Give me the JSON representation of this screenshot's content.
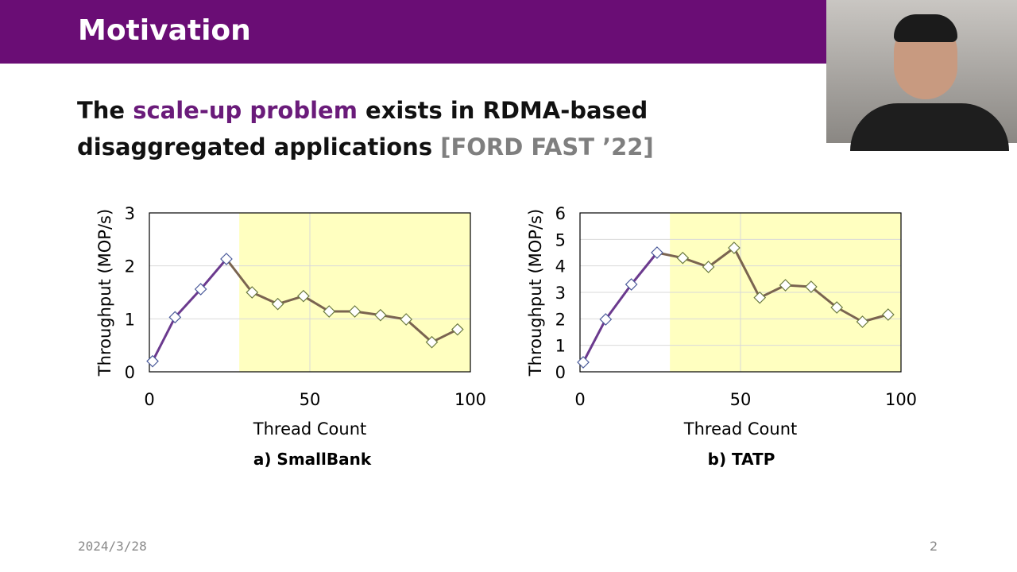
{
  "slide": {
    "title": "Motivation",
    "subtitle_pre": "The ",
    "subtitle_hl": "scale-up problem",
    "subtitle_mid": " exists in RDMA-based disaggregated applications ",
    "subtitle_cite": "[FORD FAST ’22]",
    "date": "2024/3/28",
    "page": "2",
    "accent": "#6a0d75"
  },
  "chart_data": [
    {
      "type": "line",
      "caption": "a) SmallBank",
      "xlabel": "Thread Count",
      "ylabel": "Throughput (MOP/s)",
      "xlim": [
        0,
        100
      ],
      "ylim": [
        0,
        3
      ],
      "xticks": [
        0,
        50,
        100
      ],
      "yticks": [
        0,
        1,
        2,
        3
      ],
      "grid": true,
      "shaded_region_x": [
        28,
        100
      ],
      "shade_color": "#ffffc0",
      "x": [
        1,
        8,
        16,
        24,
        32,
        40,
        48,
        56,
        64,
        72,
        80,
        88,
        96
      ],
      "y": [
        0.2,
        1.03,
        1.56,
        2.13,
        1.5,
        1.28,
        1.43,
        1.14,
        1.14,
        1.07,
        0.99,
        0.56,
        0.8
      ]
    },
    {
      "type": "line",
      "caption": "b) TATP",
      "xlabel": "Thread Count",
      "ylabel": "Throughput (MOP/s)",
      "xlim": [
        0,
        100
      ],
      "ylim": [
        0,
        6
      ],
      "xticks": [
        0,
        50,
        100
      ],
      "yticks": [
        0,
        1,
        2,
        3,
        4,
        5,
        6
      ],
      "grid": true,
      "shaded_region_x": [
        28,
        100
      ],
      "shade_color": "#ffffc0",
      "x": [
        1,
        8,
        16,
        24,
        32,
        40,
        48,
        56,
        64,
        72,
        80,
        88,
        96
      ],
      "y": [
        0.36,
        1.98,
        3.3,
        4.5,
        4.3,
        3.96,
        4.68,
        2.8,
        3.27,
        3.21,
        2.43,
        1.89,
        2.16
      ]
    }
  ]
}
